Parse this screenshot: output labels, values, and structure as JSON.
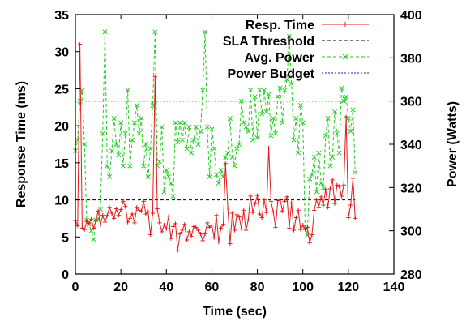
{
  "chart_data": {
    "type": "line",
    "xlabel": "Time (sec)",
    "ylabel_left": "Response Time (ms)",
    "ylabel_right": "Power (Watts)",
    "xlim": [
      0,
      140
    ],
    "ylim_left": [
      0,
      35
    ],
    "ylim_right": [
      280,
      400
    ],
    "x_ticks": [
      0,
      20,
      40,
      60,
      80,
      100,
      120,
      140
    ],
    "y_left_ticks": [
      0,
      5,
      10,
      15,
      20,
      25,
      30,
      35
    ],
    "y_right_ticks": [
      280,
      300,
      320,
      340,
      360,
      380,
      400
    ],
    "grid": false,
    "legend_position": "top-right",
    "legend": [
      {
        "name": "Resp. Time",
        "color": "#e41a1c",
        "style": "solid",
        "marker": "plus"
      },
      {
        "name": "SLA Threshold",
        "color": "#000000",
        "style": "dashed",
        "marker": "none"
      },
      {
        "name": "Avg. Power",
        "color": "#22cc22",
        "style": "dashed",
        "marker": "x"
      },
      {
        "name": "Power Budget",
        "color": "#1a1aff",
        "style": "dotted",
        "marker": "none"
      }
    ],
    "series": [
      {
        "name": "Resp. Time",
        "axis": "left",
        "color": "#e41a1c",
        "x": [
          0,
          1,
          2,
          3,
          4,
          5,
          6,
          7,
          8,
          9,
          10,
          11,
          12,
          13,
          14,
          15,
          16,
          17,
          18,
          19,
          20,
          21,
          22,
          23,
          24,
          25,
          26,
          27,
          28,
          29,
          30,
          31,
          32,
          33,
          34,
          35,
          36,
          37,
          38,
          39,
          40,
          41,
          42,
          43,
          44,
          45,
          46,
          47,
          48,
          49,
          50,
          51,
          52,
          53,
          54,
          55,
          56,
          57,
          58,
          59,
          60,
          61,
          62,
          63,
          64,
          65,
          66,
          67,
          68,
          69,
          70,
          71,
          72,
          73,
          74,
          75,
          76,
          77,
          78,
          79,
          80,
          81,
          82,
          83,
          84,
          85,
          86,
          87,
          88,
          89,
          90,
          91,
          92,
          93,
          94,
          95,
          96,
          97,
          98,
          99,
          100,
          101,
          102,
          103,
          104,
          105,
          106,
          107,
          108,
          109,
          110,
          111,
          112,
          113,
          114,
          115,
          116,
          117,
          118,
          119,
          120,
          121,
          122,
          123
        ],
        "values": [
          7.2,
          6.5,
          31.0,
          6.2,
          6.0,
          7.1,
          6.8,
          7.4,
          6.2,
          7.2,
          8.5,
          6.6,
          7.9,
          7.0,
          7.9,
          9.0,
          8.2,
          7.5,
          8.8,
          7.9,
          8.7,
          9.8,
          9.1,
          7.0,
          7.5,
          8.1,
          6.9,
          9.0,
          8.6,
          8.5,
          9.8,
          8.1,
          8.4,
          5.3,
          8.2,
          26.6,
          8.8,
          6.9,
          5.7,
          6.6,
          6.1,
          7.8,
          4.8,
          6.4,
          6.8,
          3.2,
          5.4,
          5.9,
          6.7,
          4.6,
          5.7,
          5.1,
          6.4,
          6.3,
          5.9,
          5.4,
          4.5,
          5.4,
          6.9,
          6.3,
          6.6,
          4.9,
          7.9,
          4.3,
          6.2,
          6.7,
          14.9,
          8.9,
          4.1,
          8.2,
          5.9,
          8.0,
          7.7,
          6.1,
          8.6,
          5.9,
          7.3,
          10.5,
          8.3,
          9.5,
          10.6,
          8.1,
          7.6,
          10.0,
          8.3,
          17.0,
          9.8,
          8.4,
          6.3,
          9.9,
          10.1,
          8.5,
          9.8,
          10.4,
          6.2,
          9.6,
          5.9,
          7.6,
          8.6,
          6.0,
          6.6,
          6.0,
          6.3,
          4.2,
          5.3,
          8.6,
          10.0,
          9.0,
          10.4,
          9.3,
          11.4,
          9.0,
          11.5,
          12.7,
          9.5,
          12.0,
          11.8,
          10.5,
          12.0,
          21.2,
          7.6,
          9.3,
          12.9,
          7.5
        ]
      },
      {
        "name": "SLA Threshold",
        "axis": "left",
        "color": "#000000",
        "x": [
          0,
          123
        ],
        "values": [
          10,
          10
        ]
      },
      {
        "name": "Avg. Power",
        "axis": "right",
        "color": "#22cc22",
        "x": [
          0,
          1,
          2,
          3,
          4,
          5,
          6,
          7,
          8,
          9,
          10,
          11,
          12,
          13,
          14,
          15,
          16,
          17,
          18,
          19,
          20,
          21,
          22,
          23,
          24,
          25,
          26,
          27,
          28,
          29,
          30,
          31,
          32,
          33,
          34,
          35,
          36,
          37,
          38,
          39,
          40,
          41,
          42,
          43,
          44,
          45,
          46,
          47,
          48,
          49,
          50,
          51,
          52,
          53,
          54,
          55,
          56,
          57,
          58,
          59,
          60,
          61,
          62,
          63,
          64,
          65,
          66,
          67,
          68,
          69,
          70,
          71,
          72,
          73,
          74,
          75,
          76,
          77,
          78,
          79,
          80,
          81,
          82,
          83,
          84,
          85,
          86,
          87,
          88,
          89,
          90,
          91,
          92,
          93,
          94,
          95,
          96,
          97,
          98,
          99,
          100,
          101,
          102,
          103,
          104,
          105,
          106,
          107,
          108,
          109,
          110,
          111,
          112,
          113,
          114,
          115,
          116,
          117,
          118,
          119,
          120,
          121,
          122,
          123
        ],
        "values": [
          337,
          342,
          360,
          365,
          340,
          305,
          303,
          300,
          296,
          305,
          305,
          310,
          345,
          392,
          330,
          325,
          337,
          352,
          340,
          335,
          350,
          330,
          345,
          365,
          330,
          342,
          350,
          358,
          345,
          352,
          330,
          340,
          325,
          338,
          358,
          392,
          330,
          332,
          348,
          318,
          328,
          325,
          322,
          316,
          350,
          341,
          350,
          342,
          350,
          338,
          348,
          336,
          342,
          348,
          340,
          346,
          365,
          392,
          348,
          325,
          347,
          338,
          326,
          322,
          328,
          325,
          334,
          336,
          352,
          334,
          330,
          338,
          340,
          360,
          350,
          348,
          346,
          365,
          342,
          362,
          343,
          365,
          354,
          365,
          355,
          363,
          344,
          352,
          345,
          362,
          366,
          350,
          365,
          370,
          390,
          368,
          342,
          352,
          336,
          358,
          350,
          302,
          298,
          324,
          326,
          334,
          318,
          336,
          322,
          320,
          344,
          352,
          330,
          334,
          355,
          345,
          336,
          366,
          360,
          362,
          352,
          346,
          356,
          327
        ]
      },
      {
        "name": "Power Budget",
        "axis": "right",
        "color": "#1a1aff",
        "x": [
          0,
          123
        ],
        "values": [
          360,
          360
        ]
      }
    ]
  }
}
